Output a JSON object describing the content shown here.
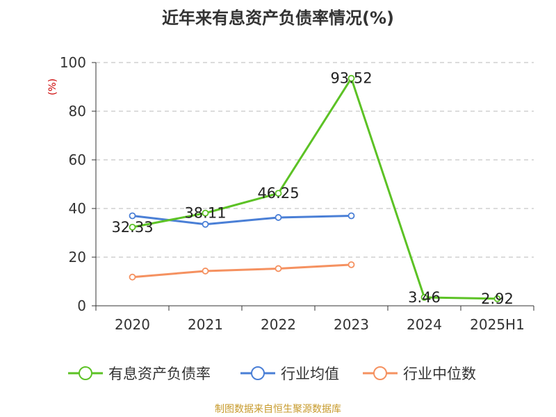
{
  "chart_data": {
    "type": "line",
    "title": "近年来有息资产负债率情况(%)",
    "ylabel": "(%)",
    "xlabel": "",
    "ylim": [
      0,
      100
    ],
    "yticks": [
      0,
      20,
      40,
      60,
      80,
      100
    ],
    "categories": [
      "2020",
      "2021",
      "2022",
      "2023",
      "2024",
      "2025H1"
    ],
    "grid": "horizontal-dashed",
    "legend_position": "bottom",
    "series": [
      {
        "name": "有息资产负债率",
        "color": "#5cc225",
        "values": [
          32.33,
          38.11,
          46.25,
          93.52,
          3.46,
          2.92
        ],
        "data_labels": [
          "32.33",
          "38.11",
          "46.25",
          "93.52",
          "3.46",
          "2.92"
        ]
      },
      {
        "name": "行业均值",
        "color": "#4a7fd6",
        "values": [
          37.0,
          33.5,
          36.3,
          37.0,
          null,
          null
        ]
      },
      {
        "name": "行业中位数",
        "color": "#f59160",
        "values": [
          11.8,
          14.3,
          15.3,
          16.9,
          null,
          null
        ]
      }
    ],
    "source": "制图数据来自恒生聚源数据库"
  }
}
